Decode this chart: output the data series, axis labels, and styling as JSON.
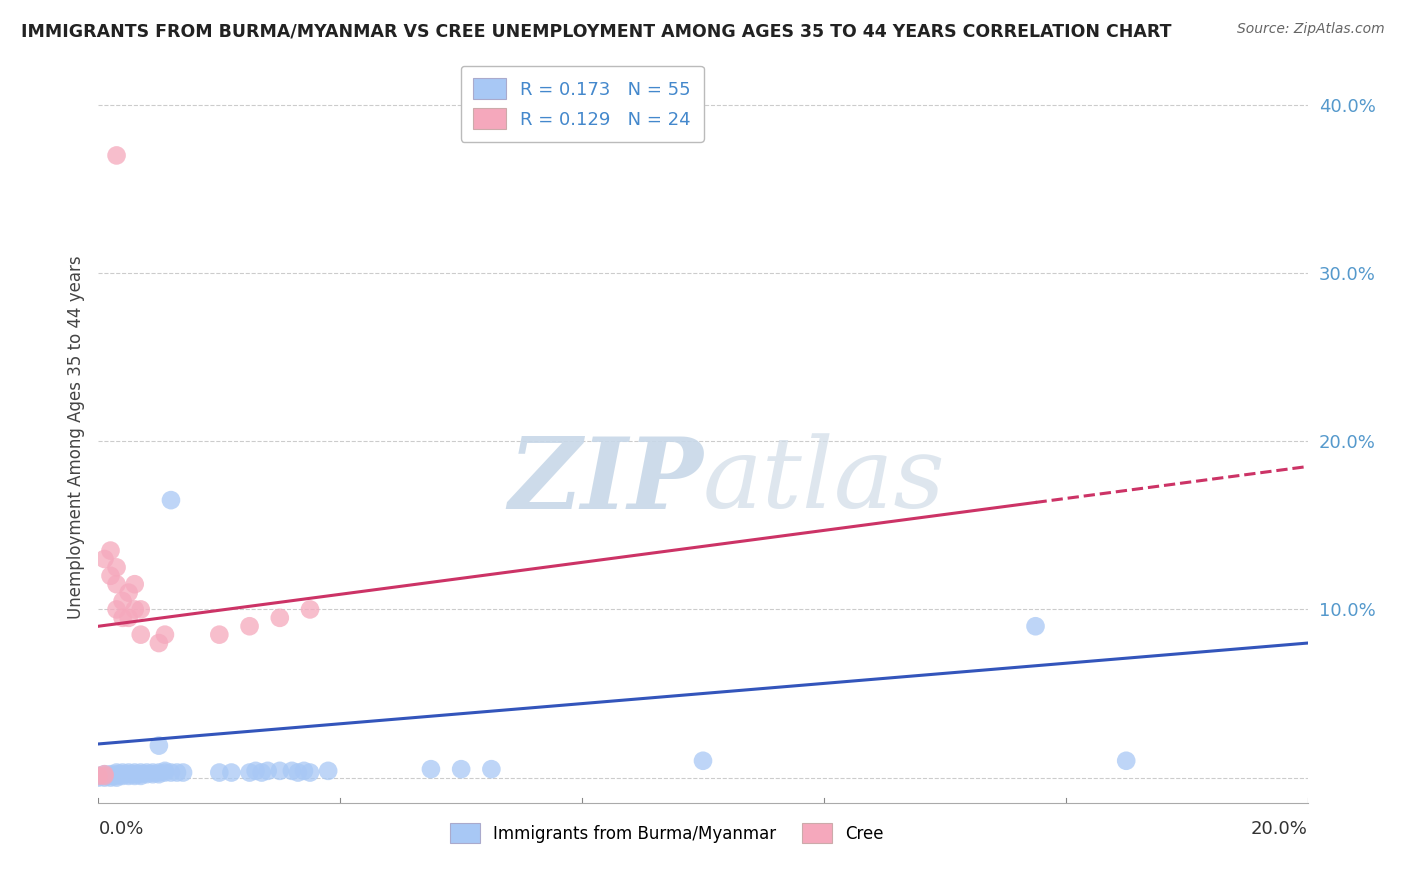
{
  "title": "IMMIGRANTS FROM BURMA/MYANMAR VS CREE UNEMPLOYMENT AMONG AGES 35 TO 44 YEARS CORRELATION CHART",
  "source": "Source: ZipAtlas.com",
  "ylabel": "Unemployment Among Ages 35 to 44 years",
  "legend_blue_R": "R = 0.173",
  "legend_blue_N": "N = 55",
  "legend_pink_R": "R = 0.129",
  "legend_pink_N": "N = 24",
  "blue_color": "#a8c8f5",
  "pink_color": "#f5a8bc",
  "blue_line_color": "#3355bb",
  "pink_line_color": "#cc3366",
  "legend_text_color": "#4488cc",
  "right_tick_color": "#5599cc",
  "blue_scatter": [
    [
      0.0,
      0.0
    ],
    [
      0.0,
      0.001
    ],
    [
      0.001,
      0.0
    ],
    [
      0.001,
      0.001
    ],
    [
      0.001,
      0.002
    ],
    [
      0.002,
      0.0
    ],
    [
      0.002,
      0.001
    ],
    [
      0.002,
      0.002
    ],
    [
      0.003,
      0.0
    ],
    [
      0.003,
      0.001
    ],
    [
      0.003,
      0.002
    ],
    [
      0.003,
      0.003
    ],
    [
      0.004,
      0.001
    ],
    [
      0.004,
      0.002
    ],
    [
      0.004,
      0.003
    ],
    [
      0.005,
      0.001
    ],
    [
      0.005,
      0.002
    ],
    [
      0.005,
      0.003
    ],
    [
      0.006,
      0.001
    ],
    [
      0.006,
      0.002
    ],
    [
      0.006,
      0.003
    ],
    [
      0.007,
      0.001
    ],
    [
      0.007,
      0.002
    ],
    [
      0.007,
      0.003
    ],
    [
      0.008,
      0.002
    ],
    [
      0.008,
      0.003
    ],
    [
      0.009,
      0.002
    ],
    [
      0.009,
      0.003
    ],
    [
      0.01,
      0.002
    ],
    [
      0.01,
      0.003
    ],
    [
      0.011,
      0.003
    ],
    [
      0.011,
      0.004
    ],
    [
      0.012,
      0.003
    ],
    [
      0.013,
      0.003
    ],
    [
      0.014,
      0.003
    ],
    [
      0.01,
      0.019
    ],
    [
      0.012,
      0.165
    ],
    [
      0.02,
      0.003
    ],
    [
      0.022,
      0.003
    ],
    [
      0.025,
      0.003
    ],
    [
      0.026,
      0.004
    ],
    [
      0.027,
      0.003
    ],
    [
      0.028,
      0.004
    ],
    [
      0.03,
      0.004
    ],
    [
      0.032,
      0.004
    ],
    [
      0.033,
      0.003
    ],
    [
      0.034,
      0.004
    ],
    [
      0.035,
      0.003
    ],
    [
      0.038,
      0.004
    ],
    [
      0.055,
      0.005
    ],
    [
      0.06,
      0.005
    ],
    [
      0.065,
      0.005
    ],
    [
      0.1,
      0.01
    ],
    [
      0.155,
      0.09
    ],
    [
      0.17,
      0.01
    ]
  ],
  "pink_scatter": [
    [
      0.0,
      0.001
    ],
    [
      0.001,
      0.001
    ],
    [
      0.001,
      0.002
    ],
    [
      0.001,
      0.13
    ],
    [
      0.002,
      0.12
    ],
    [
      0.002,
      0.135
    ],
    [
      0.003,
      0.1
    ],
    [
      0.003,
      0.115
    ],
    [
      0.003,
      0.125
    ],
    [
      0.004,
      0.095
    ],
    [
      0.004,
      0.105
    ],
    [
      0.005,
      0.095
    ],
    [
      0.005,
      0.11
    ],
    [
      0.006,
      0.1
    ],
    [
      0.006,
      0.115
    ],
    [
      0.007,
      0.085
    ],
    [
      0.007,
      0.1
    ],
    [
      0.01,
      0.08
    ],
    [
      0.011,
      0.085
    ],
    [
      0.02,
      0.085
    ],
    [
      0.025,
      0.09
    ],
    [
      0.03,
      0.095
    ],
    [
      0.035,
      0.1
    ],
    [
      0.003,
      0.37
    ]
  ],
  "blue_line_x0": 0.0,
  "blue_line_y0": 0.02,
  "blue_line_x1": 0.2,
  "blue_line_y1": 0.08,
  "pink_line_x0": 0.0,
  "pink_line_y0": 0.09,
  "pink_line_x1": 0.2,
  "pink_line_y1": 0.185,
  "xmin": 0.0,
  "xmax": 0.2,
  "ymin": -0.015,
  "ymax": 0.42,
  "background_color": "#ffffff",
  "grid_color": "#cccccc"
}
